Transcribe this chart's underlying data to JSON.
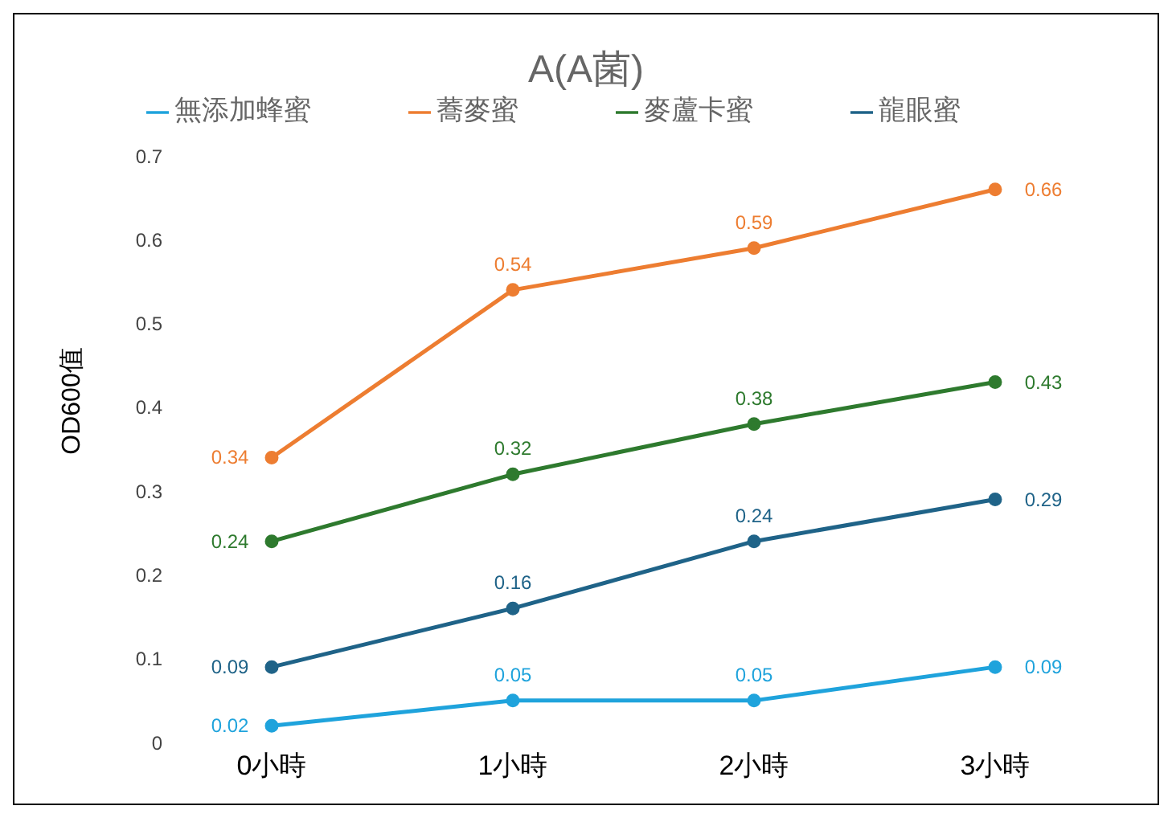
{
  "chart_data": {
    "type": "line",
    "title": "A(A菌)",
    "ylabel": "OD600值",
    "categories": [
      "0小時",
      "1小時",
      "2小時",
      "3小時"
    ],
    "series": [
      {
        "name": "龍眼蜜",
        "color": "#1f6388",
        "values": [
          0.09,
          0.16,
          0.24,
          0.29
        ]
      },
      {
        "name": "蕎麥蜜",
        "color": "#ed7d31",
        "values": [
          0.34,
          0.54,
          0.59,
          0.66
        ]
      },
      {
        "name": "麥蘆卡蜜",
        "color": "#2e7a2e",
        "values": [
          0.24,
          0.32,
          0.38,
          0.43
        ]
      },
      {
        "name": "無添加蜂蜜",
        "color": "#1fa3dc",
        "values": [
          0.02,
          0.05,
          0.05,
          0.09
        ]
      }
    ],
    "ylim": [
      0,
      0.7
    ],
    "yticks": [
      0,
      0.1,
      0.2,
      0.3,
      0.4,
      0.5,
      0.6,
      0.7
    ],
    "grid": false,
    "legend": "top",
    "marker": "circle",
    "line_style": "solid",
    "data_labels": true
  }
}
